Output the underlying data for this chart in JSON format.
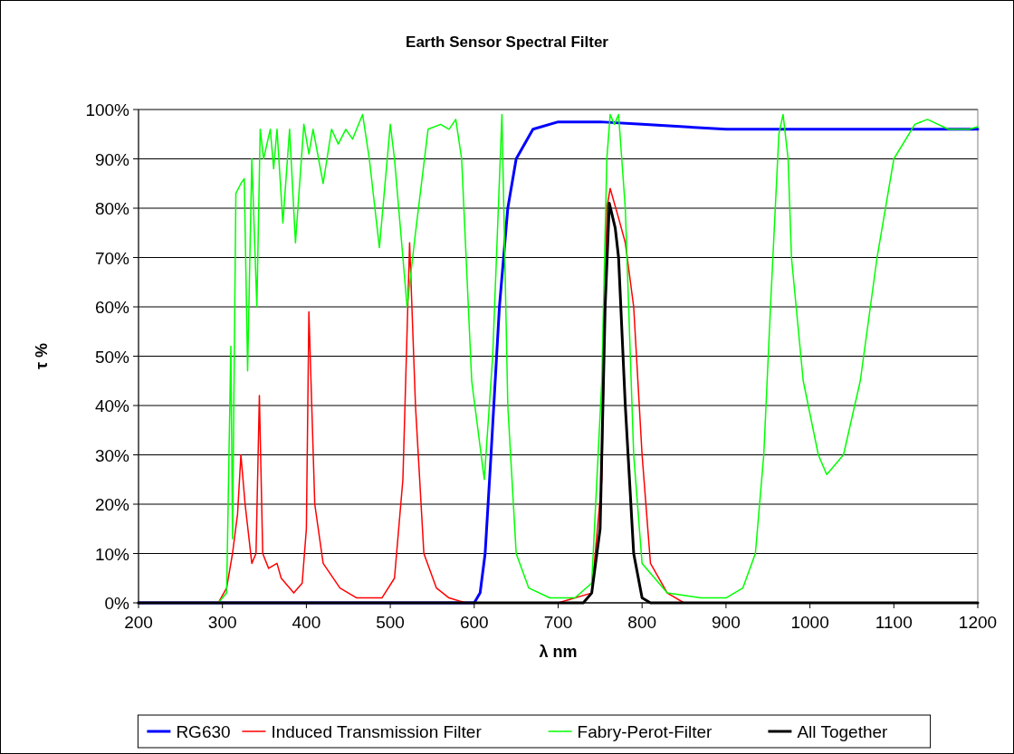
{
  "chart_data": {
    "type": "line",
    "title": "Earth Sensor Spectral Filter",
    "xlabel": "λ nm",
    "ylabel": "τ %",
    "xlim": [
      200,
      1200
    ],
    "xticks": [
      200,
      300,
      400,
      500,
      600,
      700,
      800,
      900,
      1000,
      1100,
      1200
    ],
    "ylim": [
      0,
      100
    ],
    "yticks": [
      {
        "value": 0,
        "label": "0%"
      },
      {
        "value": 10,
        "label": "10%"
      },
      {
        "value": 20,
        "label": "20%"
      },
      {
        "value": 30,
        "label": "30%"
      },
      {
        "value": 40,
        "label": "40%"
      },
      {
        "value": 50,
        "label": "50%"
      },
      {
        "value": 60,
        "label": "60%"
      },
      {
        "value": 70,
        "label": "70%"
      },
      {
        "value": 80,
        "label": "80%"
      },
      {
        "value": 90,
        "label": "90%"
      },
      {
        "value": 100,
        "label": "100%"
      }
    ],
    "grid": "y",
    "legend": "bottom",
    "marker": "none",
    "line_style": "solid",
    "series": [
      {
        "name": "RG630",
        "color": "#0000ff",
        "x": [
          200,
          600,
          607,
          613,
          620,
          630,
          640,
          650,
          670,
          700,
          750,
          800,
          850,
          900,
          1200
        ],
        "values": [
          0,
          0,
          2,
          10,
          30,
          60,
          80,
          90,
          96,
          97.5,
          97.5,
          97,
          96.5,
          96,
          96
        ]
      },
      {
        "name": "Induced Transmission Filter",
        "color": "#ff0000",
        "x": [
          200,
          295,
          305,
          312,
          318,
          322,
          327,
          335,
          340,
          344,
          348,
          355,
          365,
          370,
          385,
          395,
          400,
          403,
          410,
          420,
          440,
          460,
          490,
          505,
          515,
          523,
          530,
          540,
          555,
          570,
          590,
          700,
          740,
          752,
          758,
          762,
          772,
          780,
          790,
          800,
          810,
          830,
          850,
          1200
        ],
        "values": [
          0,
          0,
          3,
          10,
          18,
          30,
          20,
          8,
          10,
          42,
          10,
          7,
          8,
          5,
          2,
          4,
          15,
          59,
          20,
          8,
          3,
          1,
          1,
          5,
          25,
          73,
          40,
          10,
          3,
          1,
          0,
          0,
          2,
          25,
          80,
          84,
          78,
          73,
          60,
          30,
          8,
          2,
          0,
          0
        ]
      },
      {
        "name": "Fabry-Perot-Filter",
        "color": "#00ff00",
        "x": [
          200,
          295,
          305,
          310,
          312,
          316,
          322,
          326,
          330,
          335,
          341,
          345,
          349,
          357,
          361,
          365,
          372,
          380,
          387,
          397,
          403,
          408,
          420,
          430,
          438,
          447,
          455,
          467,
          475,
          487,
          500,
          505,
          520,
          530,
          545,
          560,
          570,
          578,
          585,
          597,
          612,
          622,
          633,
          640,
          650,
          665,
          690,
          720,
          740,
          752,
          758,
          762,
          767,
          772,
          780,
          790,
          800,
          830,
          870,
          900,
          920,
          935,
          945,
          953,
          963,
          968,
          974,
          978,
          992,
          1010,
          1020,
          1040,
          1060,
          1080,
          1100,
          1125,
          1140,
          1165,
          1190,
          1200
        ],
        "values": [
          0,
          0,
          2,
          52,
          13,
          83,
          85,
          86,
          47,
          90,
          60,
          96,
          90,
          96,
          88,
          96,
          77,
          96,
          73,
          97,
          91,
          96,
          85,
          96,
          93,
          96,
          94,
          99,
          90,
          72,
          97,
          90,
          60,
          75,
          96,
          97,
          96,
          98,
          90,
          45,
          25,
          50,
          99,
          40,
          10,
          3,
          1,
          1,
          4,
          45,
          90,
          99,
          97,
          99,
          80,
          30,
          8,
          2,
          1,
          1,
          3,
          10,
          30,
          60,
          95,
          99,
          90,
          70,
          45,
          30,
          26,
          30,
          45,
          70,
          90,
          97,
          98,
          96,
          96,
          96.5
        ]
      },
      {
        "name": "All Together",
        "color": "#000000",
        "x": [
          200,
          730,
          740,
          750,
          756,
          761,
          768,
          772,
          780,
          790,
          800,
          810,
          1200
        ],
        "values": [
          0,
          0,
          2,
          15,
          60,
          81,
          76,
          70,
          40,
          10,
          1,
          0,
          0
        ]
      }
    ]
  }
}
